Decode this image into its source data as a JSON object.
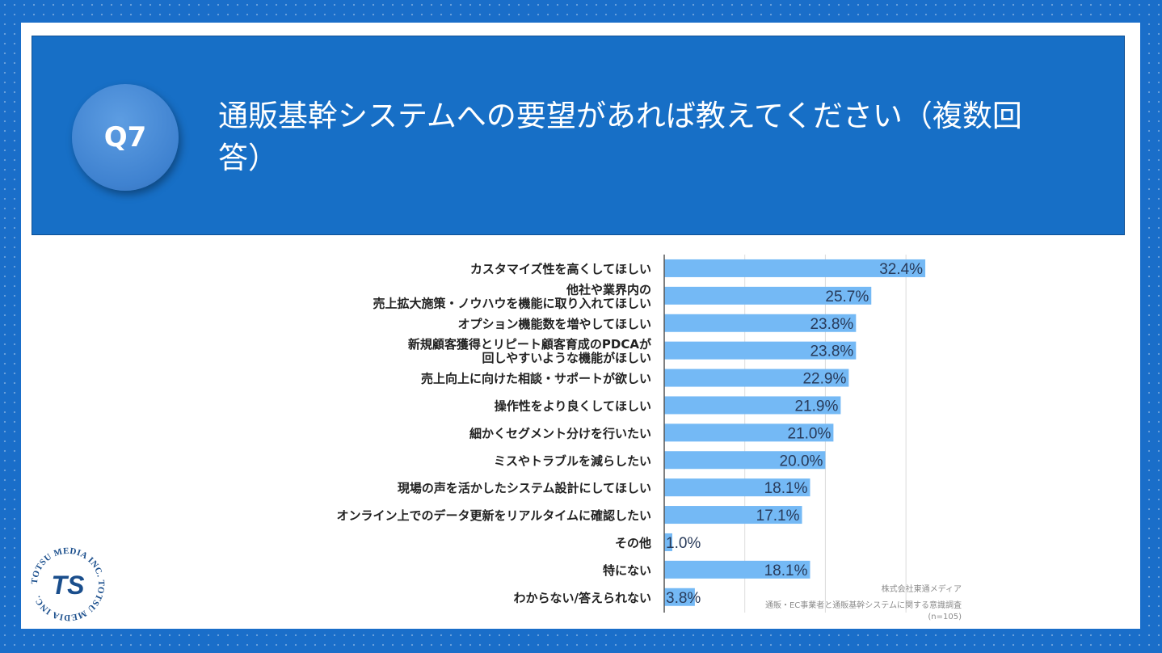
{
  "header": {
    "badge": "Q7",
    "title": "通販基幹システムへの要望があれば教えてください（複数回答）"
  },
  "logo": {
    "ring_text": "TOTSU MEDIA INC. TOTSU MEDIA INC.",
    "mark": "TS"
  },
  "credit": {
    "company": "株式会社東通メディア",
    "survey": "通販・EC事業者と通販基幹システムに関する意識調査",
    "sample": "(n=105)"
  },
  "colors": {
    "background": "#1a6ec9",
    "banner": "#176fc6",
    "bar": "#74b9f5",
    "label_text": "#222222",
    "value_text": "#283a59"
  },
  "chart_data": {
    "type": "bar",
    "orientation": "horizontal",
    "xlim": [
      0,
      35
    ],
    "grid": true,
    "categories": [
      [
        "カスタマイズ性を高くしてほしい"
      ],
      [
        "他社や業界内の",
        "売上拡大施策・ノウハウを機能に取り入れてほしい"
      ],
      [
        "オプション機能数を増やしてほしい"
      ],
      [
        "新規顧客獲得とリピート顧客育成のPDCAが",
        "回しやすいような機能がほしい"
      ],
      [
        "売上向上に向けた相談・サポートが欲しい"
      ],
      [
        "操作性をより良くしてほしい"
      ],
      [
        "細かくセグメント分けを行いたい"
      ],
      [
        "ミスやトラブルを減らしたい"
      ],
      [
        "現場の声を活かしたシステム設計にしてほしい"
      ],
      [
        "オンライン上でのデータ更新をリアルタイムに確認したい"
      ],
      [
        "その他"
      ],
      [
        "特にない"
      ],
      [
        "わからない/答えられない"
      ]
    ],
    "values": [
      32.4,
      25.7,
      23.8,
      23.8,
      22.9,
      21.9,
      21.0,
      20.0,
      18.1,
      17.1,
      1.0,
      18.1,
      3.8
    ],
    "value_labels": [
      "32.4%",
      "25.7%",
      "23.8%",
      "23.8%",
      "22.9%",
      "21.9%",
      "21.0%",
      "20.0%",
      "18.1%",
      "17.1%",
      "1.0%",
      "18.1%",
      "3.8%"
    ]
  }
}
